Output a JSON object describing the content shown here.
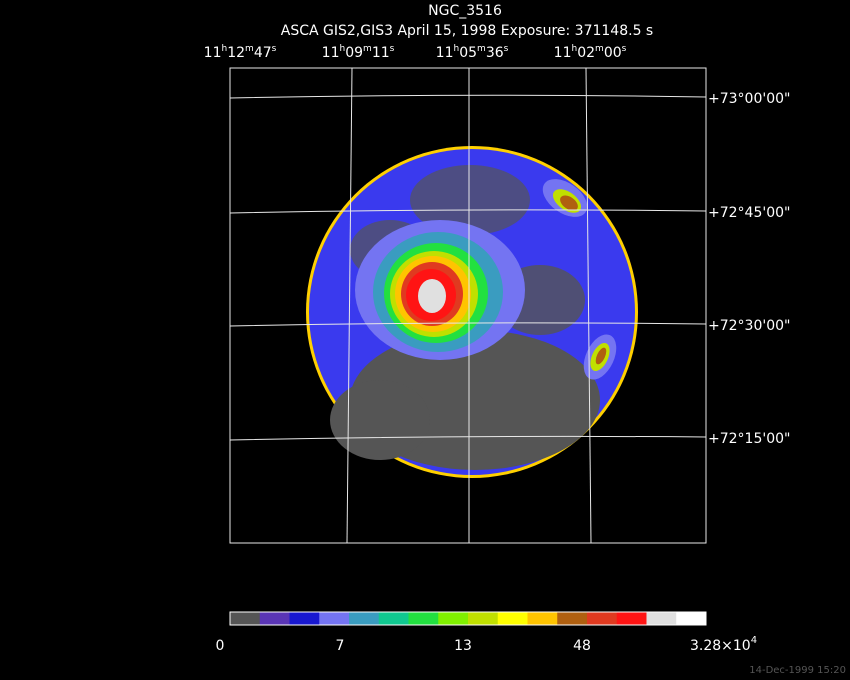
{
  "header": {
    "title": "NGC_3516",
    "subtitle": "ASCA GIS2,GIS3 April 15, 1998 Exposure: 371148.5 s"
  },
  "ra_labels": [
    "11h12m47s",
    "11h09m11s",
    "11h05m36s",
    "11h02m00s"
  ],
  "dec_labels": [
    "+73°00'00\"",
    "+72°45'00\"",
    "+72°30'00\"",
    "+72°15'00\""
  ],
  "colorbar": {
    "colors": [
      "#555555",
      "#5a35b5",
      "#1818d0",
      "#7474f2",
      "#3a9cc0",
      "#10c890",
      "#22e040",
      "#80f000",
      "#c0e000",
      "#ffff00",
      "#ffc400",
      "#b06010",
      "#e03a20",
      "#ff1414",
      "#e0e0e0",
      "#ffffff"
    ],
    "labels": [
      "0",
      "7",
      "13",
      "48"
    ],
    "max_label": {
      "base": "3.28×10",
      "exp": "4"
    }
  },
  "footer": {
    "timestamp": "14-Dec-1999 15:20"
  }
}
